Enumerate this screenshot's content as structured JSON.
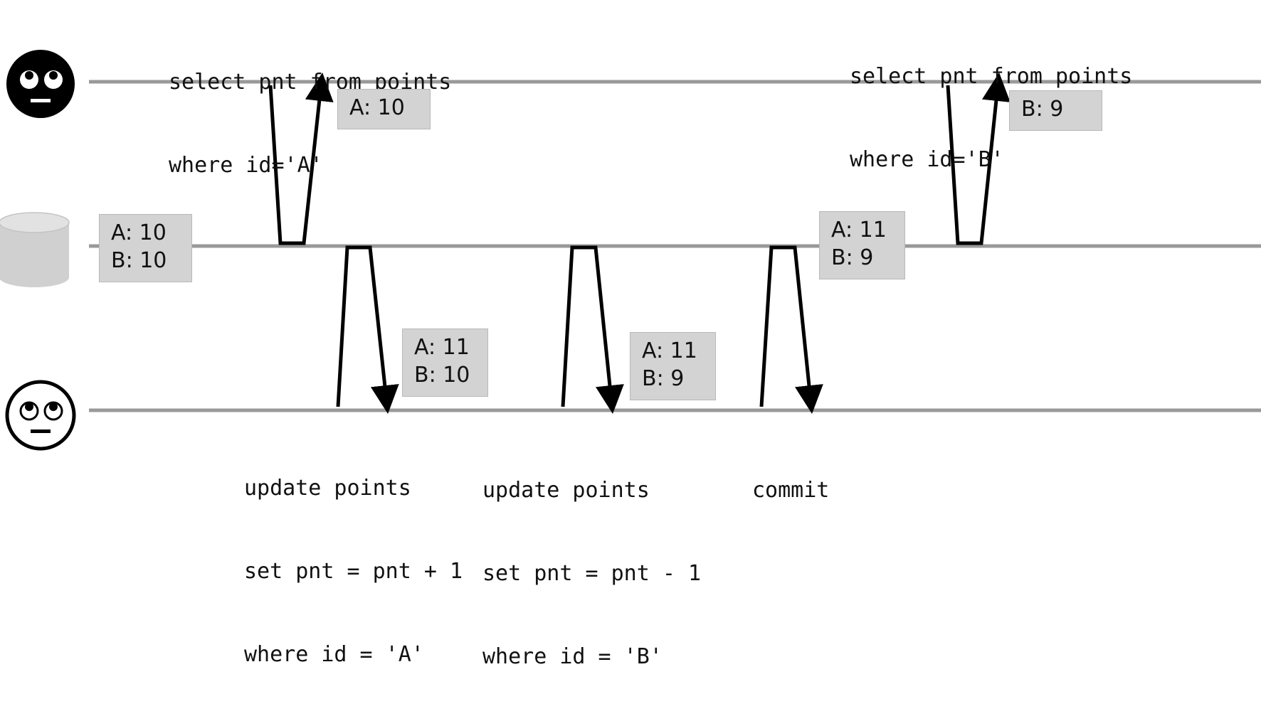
{
  "actors": {
    "top": {
      "icon": "eye-roll-face-black-icon"
    },
    "database": {
      "icon": "database-cylinder-icon"
    },
    "bottom": {
      "icon": "eye-roll-face-white-icon"
    }
  },
  "colors": {
    "timeline": "#999999",
    "arrow": "#000000",
    "box_fill": "#d3d3d3",
    "box_border": "#b8b8b8",
    "cylinder": "#d0d0d0"
  },
  "queries": {
    "select_a": [
      "select pnt from points",
      "where id='A'"
    ],
    "select_b": [
      "select pnt from points",
      "where id='B'"
    ],
    "update_a": [
      "update points",
      "set pnt = pnt + 1",
      "where id = 'A'"
    ],
    "update_b": [
      "update points",
      "set pnt = pnt - 1",
      "where id = 'B'"
    ],
    "commit": [
      "commit"
    ]
  },
  "results": {
    "read_a": [
      "A: 10"
    ],
    "read_b": [
      "B: 9"
    ]
  },
  "db_states": {
    "initial": [
      "A: 10",
      "B: 10"
    ],
    "committed": [
      "A: 11",
      "B: 9"
    ]
  },
  "tx_states": {
    "after_update_a": [
      "A: 11",
      "B: 10"
    ],
    "after_update_b": [
      "A: 11",
      "B: 9"
    ]
  }
}
